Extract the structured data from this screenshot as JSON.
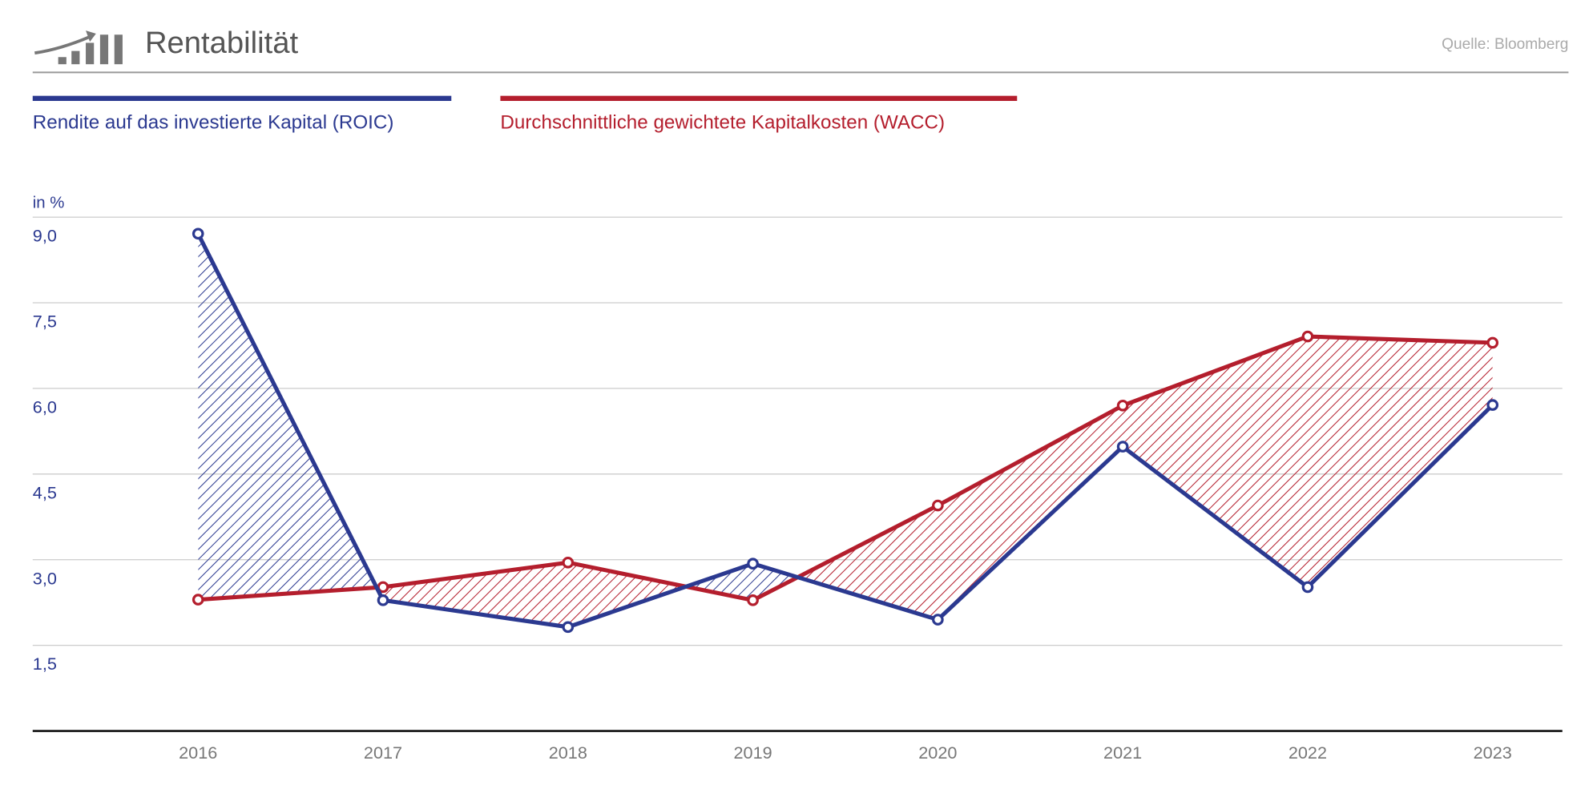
{
  "header": {
    "title": "Rentabilität",
    "source": "Quelle: Bloomberg",
    "icon": "rising-bar-chart-icon"
  },
  "colors": {
    "roic": "#2b3990",
    "wacc": "#b41e2d",
    "grid": "#cccccc",
    "axis_text": "#2b3990",
    "x_text": "#777777",
    "title_text": "#555555"
  },
  "chart_data": {
    "type": "line",
    "title": "Rentabilität",
    "ylabel": "in %",
    "ylim": [
      0,
      9.75
    ],
    "yticks": [
      1.5,
      3.0,
      4.5,
      6.0,
      7.5,
      9.0
    ],
    "ytick_labels": [
      "1,5",
      "3,0",
      "4,5",
      "6,0",
      "7,5",
      "9,0"
    ],
    "grid": true,
    "legend_placement": "top-left",
    "categories": [
      "2016",
      "2017",
      "2018",
      "2019",
      "2020",
      "2021",
      "2022",
      "2023"
    ],
    "series": [
      {
        "name": "Rendite auf das investierte Kapital (ROIC)",
        "values": [
          8.71,
          2.29,
          1.82,
          2.93,
          1.95,
          4.98,
          2.52,
          5.71
        ]
      },
      {
        "name": "Durchschnittliche gewichtete Kapitalkosten (WACC)",
        "values": [
          2.3,
          2.52,
          2.95,
          2.29,
          3.95,
          5.7,
          6.91,
          6.8
        ]
      }
    ],
    "fill_between": "hatched; blue where ROIC > WACC, red where WACC > ROIC"
  }
}
